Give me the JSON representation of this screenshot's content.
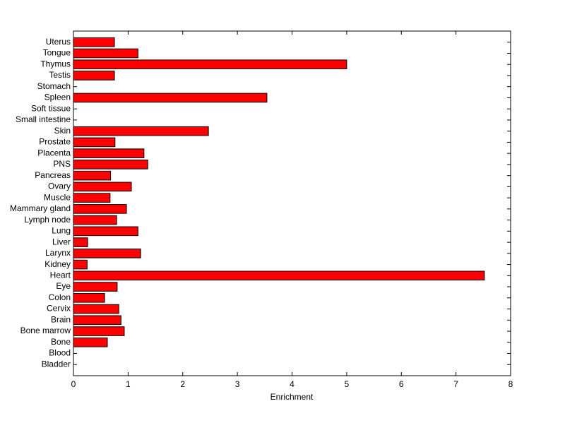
{
  "chart_data": {
    "type": "barh",
    "xlabel": "Enrichment",
    "categories": [
      "Bladder",
      "Blood",
      "Bone",
      "Bone marrow",
      "Brain",
      "Cervix",
      "Colon",
      "Eye",
      "Heart",
      "Kidney",
      "Larynx",
      "Liver",
      "Lung",
      "Lymph node",
      "Mammary gland",
      "Muscle",
      "Ovary",
      "Pancreas",
      "PNS",
      "Placenta",
      "Prostate",
      "Skin",
      "Small intestine",
      "Soft tissue",
      "Spleen",
      "Stomach",
      "Testis",
      "Thymus",
      "Tongue",
      "Uterus"
    ],
    "values": [
      0,
      0,
      0.62,
      0.93,
      0.87,
      0.83,
      0.57,
      0.8,
      7.52,
      0.25,
      1.23,
      0.26,
      1.18,
      0.79,
      0.97,
      0.67,
      1.06,
      0.68,
      1.36,
      1.29,
      0.76,
      2.47,
      0,
      0,
      3.54,
      0,
      0.75,
      5.0,
      1.18,
      0.75
    ],
    "color": "#ff0000",
    "xlim": [
      0,
      8
    ],
    "xticks": [
      0,
      1,
      2,
      3,
      4,
      5,
      6,
      7,
      8
    ]
  }
}
